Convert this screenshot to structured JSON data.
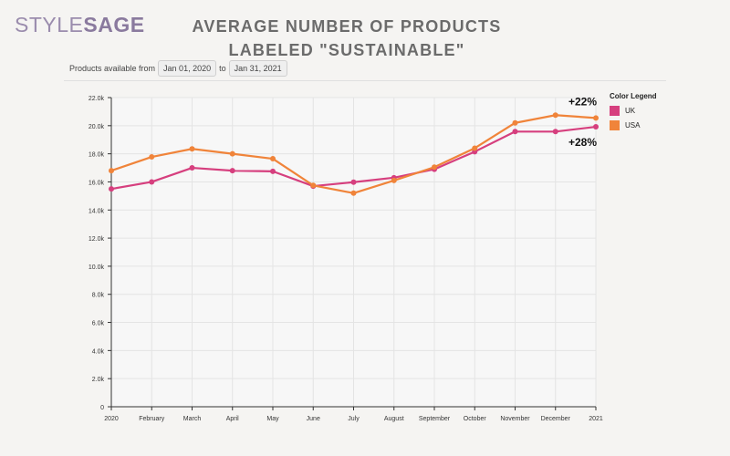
{
  "brand": {
    "logo_style": "STYLE",
    "logo_sage": "SAGE"
  },
  "title_line1": "AVERAGE NUMBER OF PRODUCTS",
  "title_line2": "LABELED \"SUSTAINABLE\"",
  "filter": {
    "prefix": "Products available from",
    "start_date": "Jan 01, 2020",
    "joiner": "to",
    "end_date": "Jan 31, 2021"
  },
  "legend_title": "Color Legend",
  "colors": {
    "UK": "#d63f7e",
    "USA": "#f0843a"
  },
  "chart_data": {
    "type": "line",
    "x": [
      "2020",
      "February",
      "March",
      "April",
      "May",
      "June",
      "July",
      "August",
      "September",
      "October",
      "November",
      "December",
      "2021"
    ],
    "series": [
      {
        "name": "UK",
        "values": [
          15500,
          16000,
          17000,
          16800,
          16750,
          15700,
          15980,
          16300,
          16900,
          18150,
          19580,
          19580,
          19920
        ]
      },
      {
        "name": "USA",
        "values": [
          16800,
          17780,
          18350,
          18000,
          17650,
          15750,
          15200,
          16100,
          17050,
          18400,
          20200,
          20750,
          20550
        ]
      }
    ],
    "annotations": [
      {
        "text": "+22%",
        "series": "USA"
      },
      {
        "text": "+28%",
        "series": "UK"
      }
    ],
    "y_ticks": [
      0,
      2000,
      4000,
      6000,
      8000,
      10000,
      12000,
      14000,
      16000,
      18000,
      20000,
      22000
    ],
    "y_tick_labels": [
      "0",
      "2.0k",
      "4.0k",
      "6.0k",
      "8.0k",
      "10.0k",
      "12.0k",
      "14.0k",
      "16.0k",
      "18.0k",
      "20.0k",
      "22.0k"
    ],
    "ylim": [
      0,
      22000
    ],
    "grid": true,
    "legend_position": "right"
  }
}
